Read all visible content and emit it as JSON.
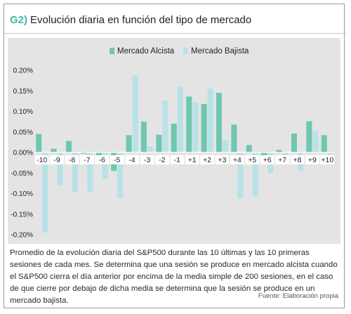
{
  "header": {
    "code": "G2)",
    "title": "Evolución diaria en función del tipo de mercado"
  },
  "chart_data": {
    "type": "bar",
    "categories": [
      "-10",
      "-9",
      "-8",
      "-7",
      "-6",
      "-5",
      "-4",
      "-3",
      "-2",
      "-1",
      "+1",
      "+2",
      "+3",
      "+4",
      "+5",
      "+6",
      "+7",
      "+8",
      "+9",
      "+10"
    ],
    "series": [
      {
        "name": "Mercado Alcista",
        "color": "#6fc7b1",
        "values": [
          0.045,
          0.009,
          0.028,
          -0.003,
          -0.022,
          -0.045,
          0.042,
          0.075,
          0.043,
          0.07,
          0.136,
          0.118,
          0.145,
          0.068,
          0.018,
          -0.008,
          0.006,
          0.046,
          0.076,
          0.042
        ]
      },
      {
        "name": "Mercado Bajista",
        "color": "#b7e2e8",
        "values": [
          -0.195,
          -0.08,
          -0.097,
          -0.095,
          -0.065,
          -0.11,
          0.188,
          0.015,
          0.126,
          0.16,
          0.122,
          0.155,
          0.03,
          -0.113,
          -0.108,
          -0.05,
          -0.01,
          -0.045,
          0.053,
          -0.005
        ]
      }
    ],
    "y_ticks": [
      "0.20%",
      "0.15%",
      "0.10%",
      "0.05%",
      "0.00%",
      "-0.05%",
      "-0.10%",
      "-0.15%",
      "-0.20%"
    ],
    "ylim": [
      -0.2,
      0.2
    ],
    "legend_position": "top",
    "grid": false
  },
  "caption": "Promedio de la evolución diaria del S&P500 durante las 10 últimas y las 10 primeras sesiones de cada mes. Se determina que una sesión se produce en mercado alcista cuando el S&P500 cierra el día anterior por encima de la media simple de 200 sesiones, en el caso de que cierre por debajo de dicha media se determina que la sesión se produce en un mercado bajista.",
  "source": "Fuente: Elaboración propia"
}
